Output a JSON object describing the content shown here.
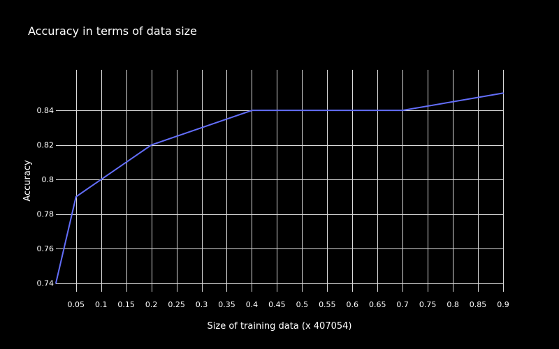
{
  "chart_data": {
    "type": "line",
    "title": "Accuracy in terms of  data size",
    "xlabel": "Size of training data (x 407054)",
    "ylabel": "Accuracy",
    "xlim": [
      0.01,
      0.9
    ],
    "ylim": [
      0.735,
      0.8635
    ],
    "x_ticks": [
      0.05,
      0.1,
      0.15,
      0.2,
      0.25,
      0.3,
      0.35,
      0.4,
      0.45,
      0.5,
      0.55,
      0.6,
      0.65,
      0.7,
      0.75,
      0.8,
      0.85,
      0.9
    ],
    "x_tick_labels": [
      "0.05",
      "0.1",
      "0.15",
      "0.2",
      "0.25",
      "0.3",
      "0.35",
      "0.4",
      "0.45",
      "0.5",
      "0.55",
      "0.6",
      "0.65",
      "0.7",
      "0.75",
      "0.8",
      "0.85",
      "0.9"
    ],
    "y_ticks": [
      0.74,
      0.76,
      0.78,
      0.8,
      0.82,
      0.84
    ],
    "y_tick_labels": [
      "0.74",
      "0.76",
      "0.78",
      "0.8",
      "0.82",
      "0.84"
    ],
    "grid": true,
    "series": [
      {
        "x": [
          0.01,
          0.05,
          0.2,
          0.4,
          0.7,
          0.9
        ],
        "y": [
          0.74,
          0.79,
          0.82,
          0.84,
          0.84,
          0.85
        ],
        "color": "#636efa"
      }
    ],
    "colors": {
      "background": "#000000",
      "grid": "#d9d9d9",
      "text": "#ffffff"
    }
  }
}
